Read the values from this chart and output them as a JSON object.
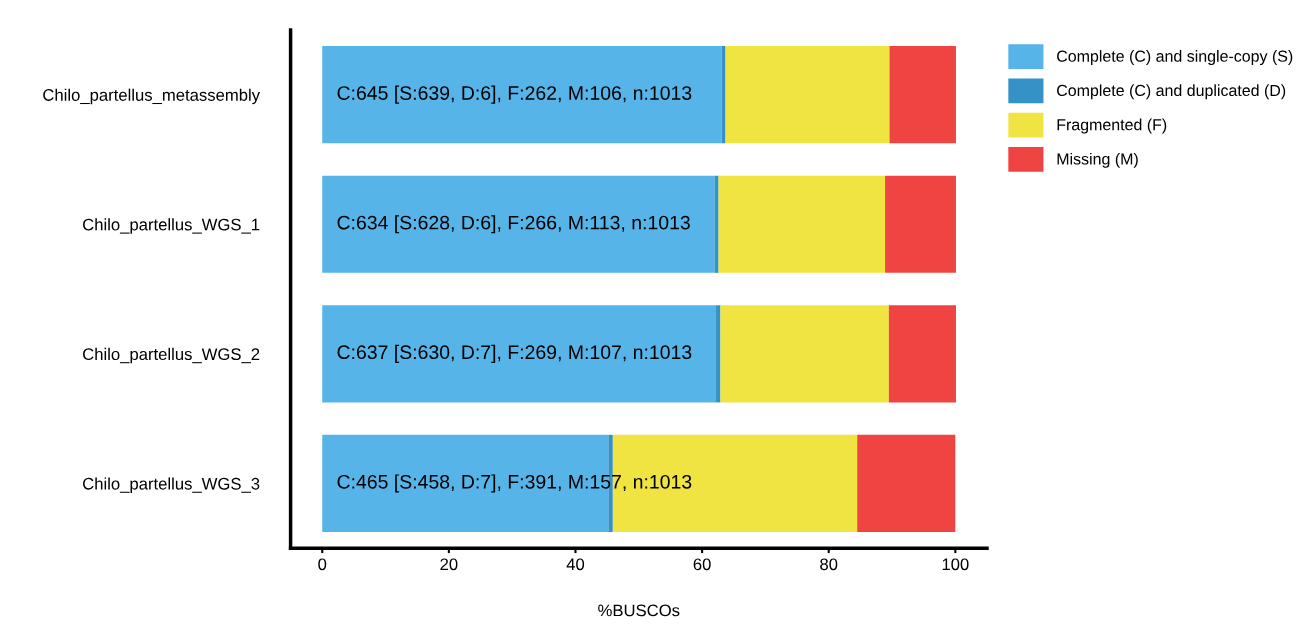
{
  "chart_data": {
    "type": "bar",
    "orientation": "horizontal",
    "stacked": true,
    "categories": [
      "Chilo_partellus_metassembly",
      "Chilo_partellus_WGS_1",
      "Chilo_partellus_WGS_2",
      "Chilo_partellus_WGS_3"
    ],
    "series": [
      {
        "name": "Complete (C) and single-copy (S)",
        "color": "#56b4e9",
        "values": [
          63.1,
          62.0,
          62.2,
          45.2
        ],
        "value_labels": [
          "C:645 [S:639, D:6], F:262, M:106, n:1013",
          "C:634 [S:628, D:6], F:266, M:113, n:1013",
          "C:637 [S:630, D:7], F:269, M:107, n:1013",
          "C:465 [S:458, D:7], F:391, M:157, n:1013"
        ]
      },
      {
        "name": "Complete (C) and duplicated (D)",
        "color": "#3492c7",
        "values": [
          0.6,
          0.6,
          0.7,
          0.7
        ]
      },
      {
        "name": "Fragmented (F)",
        "color": "#f0e442",
        "values": [
          25.9,
          26.3,
          26.6,
          38.6
        ]
      },
      {
        "name": "Missing (M)",
        "color": "#f04442",
        "values": [
          10.5,
          11.2,
          10.6,
          15.5
        ]
      }
    ],
    "xlabel": "%BUSCOs",
    "xlim": [
      -5,
      105
    ],
    "xticks": [
      0,
      20,
      40,
      60,
      80,
      100
    ],
    "grid": false,
    "legend": "top right"
  }
}
